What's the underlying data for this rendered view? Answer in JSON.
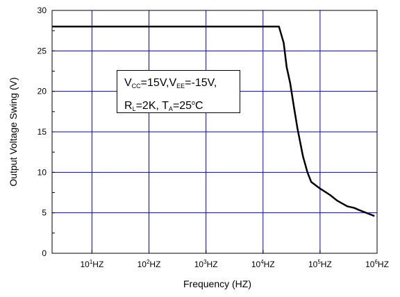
{
  "chart_data": {
    "type": "line",
    "title": "",
    "xlabel": "Frequency (HZ)",
    "ylabel": "Output Voltage Swing (V)",
    "x_scale": "log",
    "xlim": [
      2,
      1000000
    ],
    "ylim": [
      0,
      30
    ],
    "y_ticks": [
      0,
      5,
      10,
      15,
      20,
      25,
      30
    ],
    "x_ticks": [
      {
        "value": 10,
        "base": "10",
        "exp": "1",
        "unit": "HZ"
      },
      {
        "value": 100,
        "base": "10",
        "exp": "2",
        "unit": "HZ"
      },
      {
        "value": 1000,
        "base": "10",
        "exp": "3",
        "unit": "HZ"
      },
      {
        "value": 10000,
        "base": "10",
        "exp": "4",
        "unit": "HZ"
      },
      {
        "value": 100000,
        "base": "10",
        "exp": "5",
        "unit": "HZ"
      },
      {
        "value": 1000000,
        "base": "10",
        "exp": "6",
        "unit": "HZ"
      }
    ],
    "grid": true,
    "line_color": "#000000",
    "grid_color": "#0000cc",
    "series": [
      {
        "x": [
          2,
          10,
          100,
          1000,
          10000,
          19000,
          23000,
          26000,
          30000,
          35000,
          40000,
          50000,
          60000,
          70000,
          80000,
          100000,
          150000,
          200000,
          300000,
          400000,
          500000,
          700000,
          900000
        ],
        "y": [
          28,
          28,
          28,
          28,
          28,
          28,
          26,
          23,
          21,
          18,
          15.5,
          12,
          10,
          8.8,
          8.5,
          8,
          7.2,
          6.5,
          5.8,
          5.6,
          5.3,
          4.9,
          4.6
        ]
      }
    ],
    "annotation": {
      "line1": {
        "v1": "V",
        "v1_sub": "CC",
        "v1_val": "=15V,",
        "v2": "V",
        "v2_sub": "EE",
        "v2_val": "=-15V,"
      },
      "line2": {
        "r": "R",
        "r_sub": "L",
        "r_val": "=2K, ",
        "t": "T",
        "t_sub": "A",
        "t_val": "=25",
        "deg": "o",
        "unit": "C"
      }
    }
  }
}
